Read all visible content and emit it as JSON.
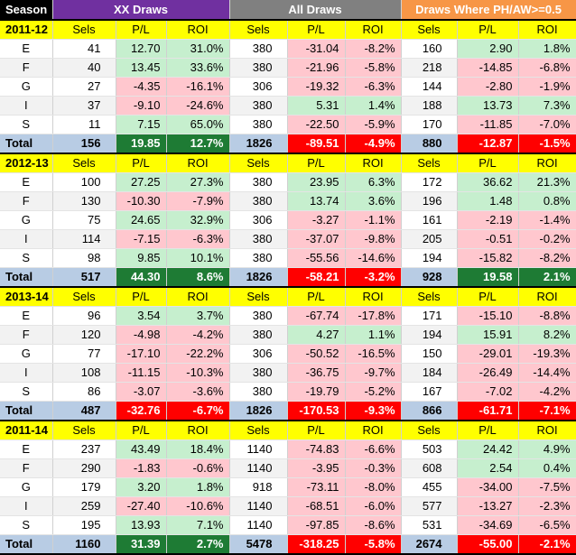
{
  "headers": {
    "season": "Season",
    "groups": [
      "XX Draws",
      "All Draws",
      "Draws Where PH/AW>=0.5"
    ],
    "columns": [
      "Sels",
      "P/L",
      "ROI"
    ]
  },
  "colors": {
    "xx_header": "#7030a0",
    "all_header": "#808080",
    "ph_header": "#f79646",
    "season_bar": "#ffff00",
    "positive_fill": "#c6efce",
    "negative_fill": "#ffc7ce",
    "total_positive": "#1e7b34",
    "total_negative": "#ff0000",
    "total_row": "#b8cce4"
  },
  "sections": [
    {
      "season": "2011-12",
      "rows": [
        {
          "label": "E",
          "xx": [
            "41",
            "12.70",
            "31.0%"
          ],
          "all": [
            "380",
            "-31.04",
            "-8.2%"
          ],
          "ph": [
            "160",
            "2.90",
            "1.8%"
          ]
        },
        {
          "label": "F",
          "xx": [
            "40",
            "13.45",
            "33.6%"
          ],
          "all": [
            "380",
            "-21.96",
            "-5.8%"
          ],
          "ph": [
            "218",
            "-14.85",
            "-6.8%"
          ]
        },
        {
          "label": "G",
          "xx": [
            "27",
            "-4.35",
            "-16.1%"
          ],
          "all": [
            "306",
            "-19.32",
            "-6.3%"
          ],
          "ph": [
            "144",
            "-2.80",
            "-1.9%"
          ]
        },
        {
          "label": "I",
          "xx": [
            "37",
            "-9.10",
            "-24.6%"
          ],
          "all": [
            "380",
            "5.31",
            "1.4%"
          ],
          "ph": [
            "188",
            "13.73",
            "7.3%"
          ]
        },
        {
          "label": "S",
          "xx": [
            "11",
            "7.15",
            "65.0%"
          ],
          "all": [
            "380",
            "-22.50",
            "-5.9%"
          ],
          "ph": [
            "170",
            "-11.85",
            "-7.0%"
          ]
        }
      ],
      "total": {
        "label": "Total",
        "xx": [
          "156",
          "19.85",
          "12.7%"
        ],
        "all": [
          "1826",
          "-89.51",
          "-4.9%"
        ],
        "ph": [
          "880",
          "-12.87",
          "-1.5%"
        ]
      }
    },
    {
      "season": "2012-13",
      "rows": [
        {
          "label": "E",
          "xx": [
            "100",
            "27.25",
            "27.3%"
          ],
          "all": [
            "380",
            "23.95",
            "6.3%"
          ],
          "ph": [
            "172",
            "36.62",
            "21.3%"
          ]
        },
        {
          "label": "F",
          "xx": [
            "130",
            "-10.30",
            "-7.9%"
          ],
          "all": [
            "380",
            "13.74",
            "3.6%"
          ],
          "ph": [
            "196",
            "1.48",
            "0.8%"
          ]
        },
        {
          "label": "G",
          "xx": [
            "75",
            "24.65",
            "32.9%"
          ],
          "all": [
            "306",
            "-3.27",
            "-1.1%"
          ],
          "ph": [
            "161",
            "-2.19",
            "-1.4%"
          ]
        },
        {
          "label": "I",
          "xx": [
            "114",
            "-7.15",
            "-6.3%"
          ],
          "all": [
            "380",
            "-37.07",
            "-9.8%"
          ],
          "ph": [
            "205",
            "-0.51",
            "-0.2%"
          ]
        },
        {
          "label": "S",
          "xx": [
            "98",
            "9.85",
            "10.1%"
          ],
          "all": [
            "380",
            "-55.56",
            "-14.6%"
          ],
          "ph": [
            "194",
            "-15.82",
            "-8.2%"
          ]
        }
      ],
      "total": {
        "label": "Total",
        "xx": [
          "517",
          "44.30",
          "8.6%"
        ],
        "all": [
          "1826",
          "-58.21",
          "-3.2%"
        ],
        "ph": [
          "928",
          "19.58",
          "2.1%"
        ]
      }
    },
    {
      "season": "2013-14",
      "rows": [
        {
          "label": "E",
          "xx": [
            "96",
            "3.54",
            "3.7%"
          ],
          "all": [
            "380",
            "-67.74",
            "-17.8%"
          ],
          "ph": [
            "171",
            "-15.10",
            "-8.8%"
          ]
        },
        {
          "label": "F",
          "xx": [
            "120",
            "-4.98",
            "-4.2%"
          ],
          "all": [
            "380",
            "4.27",
            "1.1%"
          ],
          "ph": [
            "194",
            "15.91",
            "8.2%"
          ]
        },
        {
          "label": "G",
          "xx": [
            "77",
            "-17.10",
            "-22.2%"
          ],
          "all": [
            "306",
            "-50.52",
            "-16.5%"
          ],
          "ph": [
            "150",
            "-29.01",
            "-19.3%"
          ]
        },
        {
          "label": "I",
          "xx": [
            "108",
            "-11.15",
            "-10.3%"
          ],
          "all": [
            "380",
            "-36.75",
            "-9.7%"
          ],
          "ph": [
            "184",
            "-26.49",
            "-14.4%"
          ]
        },
        {
          "label": "S",
          "xx": [
            "86",
            "-3.07",
            "-3.6%"
          ],
          "all": [
            "380",
            "-19.79",
            "-5.2%"
          ],
          "ph": [
            "167",
            "-7.02",
            "-4.2%"
          ]
        }
      ],
      "total": {
        "label": "Total",
        "xx": [
          "487",
          "-32.76",
          "-6.7%"
        ],
        "all": [
          "1826",
          "-170.53",
          "-9.3%"
        ],
        "ph": [
          "866",
          "-61.71",
          "-7.1%"
        ]
      }
    },
    {
      "season": "2011-14",
      "rows": [
        {
          "label": "E",
          "xx": [
            "237",
            "43.49",
            "18.4%"
          ],
          "all": [
            "1140",
            "-74.83",
            "-6.6%"
          ],
          "ph": [
            "503",
            "24.42",
            "4.9%"
          ]
        },
        {
          "label": "F",
          "xx": [
            "290",
            "-1.83",
            "-0.6%"
          ],
          "all": [
            "1140",
            "-3.95",
            "-0.3%"
          ],
          "ph": [
            "608",
            "2.54",
            "0.4%"
          ]
        },
        {
          "label": "G",
          "xx": [
            "179",
            "3.20",
            "1.8%"
          ],
          "all": [
            "918",
            "-73.11",
            "-8.0%"
          ],
          "ph": [
            "455",
            "-34.00",
            "-7.5%"
          ]
        },
        {
          "label": "I",
          "xx": [
            "259",
            "-27.40",
            "-10.6%"
          ],
          "all": [
            "1140",
            "-68.51",
            "-6.0%"
          ],
          "ph": [
            "577",
            "-13.27",
            "-2.3%"
          ]
        },
        {
          "label": "S",
          "xx": [
            "195",
            "13.93",
            "7.1%"
          ],
          "all": [
            "1140",
            "-97.85",
            "-8.6%"
          ],
          "ph": [
            "531",
            "-34.69",
            "-6.5%"
          ]
        }
      ],
      "total": {
        "label": "Total",
        "xx": [
          "1160",
          "31.39",
          "2.7%"
        ],
        "all": [
          "5478",
          "-318.25",
          "-5.8%"
        ],
        "ph": [
          "2674",
          "-55.00",
          "-2.1%"
        ]
      }
    }
  ]
}
